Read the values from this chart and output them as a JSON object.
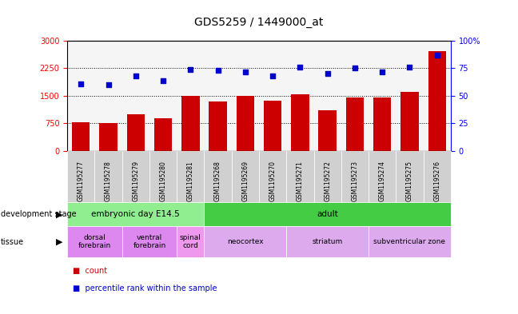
{
  "title": "GDS5259 / 1449000_at",
  "samples": [
    "GSM1195277",
    "GSM1195278",
    "GSM1195279",
    "GSM1195280",
    "GSM1195281",
    "GSM1195268",
    "GSM1195269",
    "GSM1195270",
    "GSM1195271",
    "GSM1195272",
    "GSM1195273",
    "GSM1195274",
    "GSM1195275",
    "GSM1195276"
  ],
  "counts": [
    780,
    760,
    1000,
    880,
    1490,
    1350,
    1490,
    1370,
    1540,
    1100,
    1450,
    1450,
    1600,
    2720
  ],
  "percentiles": [
    61,
    60,
    68,
    64,
    74,
    73,
    72,
    68,
    76,
    70,
    75,
    72,
    76,
    87
  ],
  "bar_color": "#cc0000",
  "dot_color": "#0000cc",
  "ylim_left": [
    0,
    3000
  ],
  "ylim_right": [
    0,
    100
  ],
  "yticks_left": [
    0,
    750,
    1500,
    2250,
    3000
  ],
  "yticks_right": [
    0,
    25,
    50,
    75,
    100
  ],
  "ytick_labels_right": [
    "0",
    "25",
    "50",
    "75",
    "100%"
  ],
  "dev_stage_groups": [
    {
      "label": "embryonic day E14.5",
      "start": 0,
      "end": 4,
      "color": "#90ee90"
    },
    {
      "label": "adult",
      "start": 5,
      "end": 13,
      "color": "#44cc44"
    }
  ],
  "tissue_groups": [
    {
      "label": "dorsal\nforebrain",
      "start": 0,
      "end": 1,
      "color": "#dd88ee"
    },
    {
      "label": "ventral\nforebrain",
      "start": 2,
      "end": 3,
      "color": "#dd88ee"
    },
    {
      "label": "spinal\ncord",
      "start": 4,
      "end": 4,
      "color": "#ee99ee"
    },
    {
      "label": "neocortex",
      "start": 5,
      "end": 7,
      "color": "#ddaaee"
    },
    {
      "label": "striatum",
      "start": 8,
      "end": 10,
      "color": "#ddaaee"
    },
    {
      "label": "subventricular zone",
      "start": 11,
      "end": 13,
      "color": "#ddaaee"
    }
  ],
  "legend_count_label": "count",
  "legend_pct_label": "percentile rank within the sample",
  "dev_stage_label": "development stage",
  "tissue_label": "tissue",
  "plot_bg": "#f5f5f5",
  "sample_box_color": "#d0d0d0"
}
